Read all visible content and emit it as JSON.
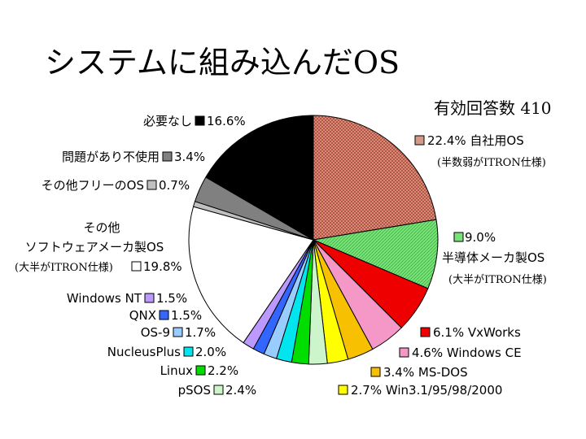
{
  "chart_data": {
    "type": "pie",
    "title": "システムに組み込んだOS",
    "subtitle": "有効回答数 410",
    "slices": [
      {
        "label": "自社用OS",
        "note": "(半数弱がITRON仕様)",
        "value": 22.4,
        "value_text": "22.4%",
        "color": "#d49a88",
        "pattern": "grid"
      },
      {
        "label": "半導体メーカ製OS",
        "note": "(大半がITRON仕様)",
        "value": 9.0,
        "value_text": "9.0%",
        "color": "#77e277",
        "pattern": "hatch"
      },
      {
        "label": "VxWorks",
        "value": 6.1,
        "value_text": "6.1%",
        "color": "#ee0000"
      },
      {
        "label": "Windows CE",
        "value": 4.6,
        "value_text": "4.6%",
        "color": "#f598c8"
      },
      {
        "label": "MS-DOS",
        "value": 3.4,
        "value_text": "3.4%",
        "color": "#f7c000"
      },
      {
        "label": "Win3.1/95/98/2000",
        "value": 2.7,
        "value_text": "2.7%",
        "color": "#ffff00"
      },
      {
        "label": "pSOS",
        "value": 2.4,
        "value_text": "2.4%",
        "color": "#ccf5cc"
      },
      {
        "label": "Linux",
        "value": 2.2,
        "value_text": "2.2%",
        "color": "#00dd00"
      },
      {
        "label": "NucleusPlus",
        "value": 2.0,
        "value_text": "2.0%",
        "color": "#00e5ee"
      },
      {
        "label": "OS-9",
        "value": 1.7,
        "value_text": "1.7%",
        "color": "#99ccff"
      },
      {
        "label": "QNX",
        "value": 1.5,
        "value_text": "1.5%",
        "color": "#3366ff"
      },
      {
        "label": "Windows NT",
        "value": 1.5,
        "value_text": "1.5%",
        "color": "#bb99ff"
      },
      {
        "label": "その他\nソフトウェアメーカ製OS",
        "note": "(大半がITRON仕様)",
        "value": 19.8,
        "value_text": "19.8%",
        "color": "#ffffff"
      },
      {
        "label": "その他フリーのOS",
        "value": 0.7,
        "value_text": "0.7%",
        "color": "#c0c0c0"
      },
      {
        "label": "問題があり不使用",
        "value": 3.4,
        "value_text": "3.4%",
        "color": "#808080"
      },
      {
        "label": "必要なし",
        "value": 16.6,
        "value_text": "16.6%",
        "color": "#000000"
      }
    ]
  }
}
